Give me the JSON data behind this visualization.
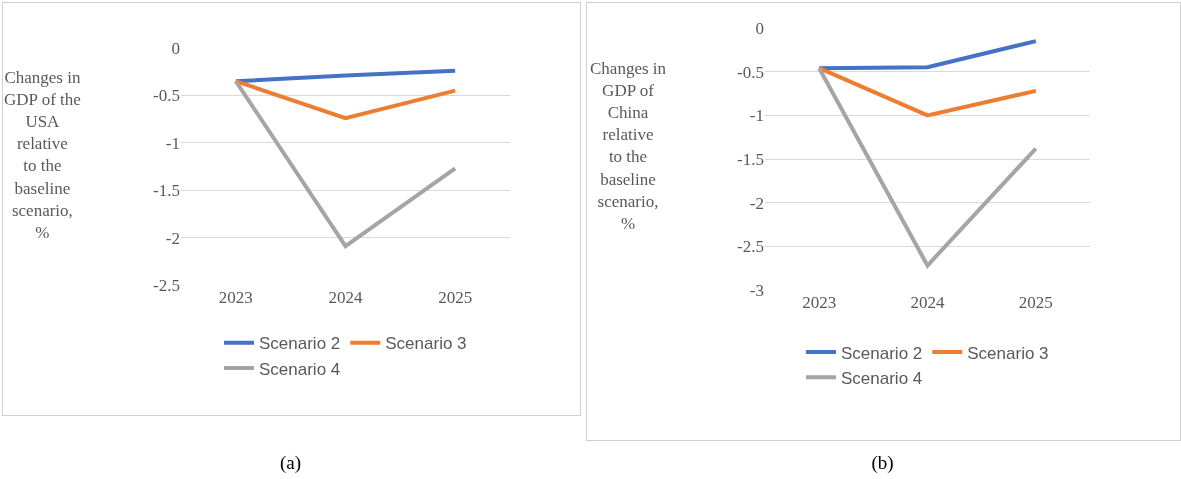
{
  "chart_data": [
    {
      "type": "line",
      "ylabel": "Changes in GDP of the USA relative to the baseline scenario, %",
      "categories": [
        "2023",
        "2024",
        "2025"
      ],
      "series": [
        {
          "name": "Scenario 2",
          "color": "#4472c4",
          "values": [
            -0.35,
            -0.29,
            -0.24
          ]
        },
        {
          "name": "Scenario 3",
          "color": "#ed7d31",
          "values": [
            -0.35,
            -0.74,
            -0.45
          ]
        },
        {
          "name": "Scenario 4",
          "color": "#a5a5a5",
          "values": [
            -0.35,
            -2.09,
            -1.27
          ]
        }
      ],
      "ylim": [
        -2.5,
        0
      ],
      "yticks": [
        0,
        -0.5,
        -1,
        -1.5,
        -2,
        -2.5
      ],
      "grid": "y",
      "legend": "bottom",
      "marker": "none",
      "line_style": "solid",
      "annotations": [
        "(a)"
      ]
    },
    {
      "type": "line",
      "ylabel": "Changes in GDP of China relative to the baseline scenario, %",
      "categories": [
        "2023",
        "2024",
        "2025"
      ],
      "series": [
        {
          "name": "Scenario 2",
          "color": "#4472c4",
          "values": [
            -0.46,
            -0.45,
            -0.15
          ]
        },
        {
          "name": "Scenario 3",
          "color": "#ed7d31",
          "values": [
            -0.46,
            -1.0,
            -0.72
          ]
        },
        {
          "name": "Scenario 4",
          "color": "#a5a5a5",
          "values": [
            -0.46,
            -2.72,
            -1.38
          ]
        }
      ],
      "ylim": [
        -3,
        0
      ],
      "yticks": [
        0,
        -0.5,
        -1,
        -1.5,
        -2,
        -2.5,
        -3
      ],
      "grid": "y",
      "legend": "bottom",
      "marker": "none",
      "line_style": "solid",
      "annotations": [
        "(b)"
      ]
    }
  ]
}
